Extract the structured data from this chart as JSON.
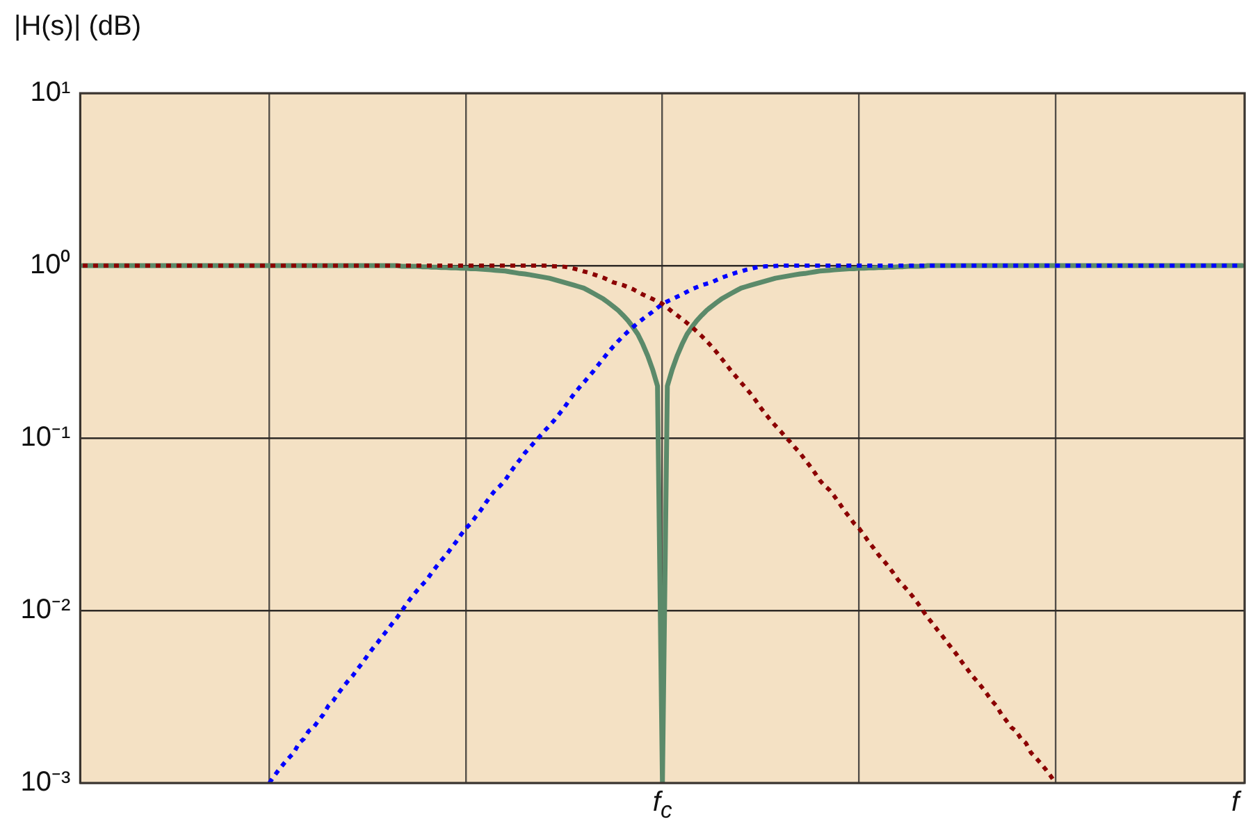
{
  "chart_data": {
    "type": "line",
    "ylabel": "|H(s)| (dB)",
    "xlabel": "f",
    "categories": [
      null,
      null,
      null,
      null,
      null,
      null,
      null,
      null,
      null,
      null,
      null,
      null,
      null,
      null,
      null,
      null,
      null,
      null,
      null,
      null,
      null,
      null,
      null,
      null,
      null,
      null,
      null,
      null,
      null,
      null,
      null,
      null,
      null,
      null,
      null,
      null,
      null,
      null,
      null,
      null,
      null,
      null,
      null,
      null,
      null,
      null,
      null,
      null,
      null,
      null,
      null,
      null,
      null,
      null,
      null,
      null,
      null,
      null,
      null,
      null,
      null,
      null,
      null,
      null,
      null,
      null,
      null,
      null,
      null,
      null,
      null,
      null,
      null,
      null,
      null,
      null,
      null,
      null,
      null,
      null,
      null,
      null,
      null,
      null,
      null,
      null,
      null,
      null,
      null,
      null,
      null,
      null,
      null,
      null,
      null,
      null,
      null,
      null,
      null,
      null,
      null,
      null,
      null,
      null,
      null,
      null,
      null,
      null,
      null,
      null,
      null,
      null,
      null,
      null,
      null,
      null,
      null,
      null,
      "f$_{c}$",
      null,
      null,
      null,
      null,
      null,
      null,
      null,
      null,
      null,
      null,
      null,
      null,
      null,
      null,
      null,
      null,
      null,
      null,
      null,
      null,
      null,
      null,
      null,
      null,
      null,
      null,
      null,
      null,
      null,
      null,
      null,
      null,
      null,
      null,
      null,
      null,
      null,
      null,
      null,
      null,
      null,
      null,
      null,
      null,
      null,
      null,
      null,
      null,
      null,
      null,
      null,
      null,
      null,
      null,
      null,
      null,
      null,
      null,
      null,
      null,
      null,
      null,
      null,
      null,
      null,
      null,
      null,
      null,
      null,
      null,
      null,
      null,
      null,
      null,
      null,
      null,
      null,
      null,
      null,
      null,
      null,
      null,
      null,
      null,
      null,
      null,
      null,
      null,
      null,
      null,
      null,
      null,
      null,
      null,
      null,
      null,
      null,
      null,
      null,
      null,
      null,
      null,
      null,
      null,
      null,
      null,
      null,
      null,
      null,
      null,
      null,
      null,
      null,
      null,
      null,
      null,
      null,
      null
    ],
    "ylim": [
      0.001,
      10
    ],
    "yticks": [
      {
        "value": 0.001,
        "label": "10⁻³"
      },
      {
        "value": 0.01,
        "label": "10⁻²"
      },
      {
        "value": 0.1,
        "label": "10⁻¹"
      },
      {
        "value": 1,
        "label": "10⁰"
      },
      {
        "value": 10,
        "label": "10¹"
      }
    ],
    "log": "y",
    "grid": true,
    "series": [
      {
        "color": "#8b0000",
        "line_style": "dotted",
        "values": [
          1,
          1,
          1,
          1,
          1,
          1,
          1,
          1,
          1,
          1,
          1,
          1,
          1,
          1,
          1,
          1,
          1,
          1,
          1,
          1,
          1,
          1,
          1,
          1,
          1,
          1,
          1,
          1,
          1,
          1,
          1,
          1,
          1,
          1,
          1,
          1,
          1,
          1,
          1,
          1,
          1,
          1,
          1,
          1,
          1,
          1,
          1,
          1,
          1,
          1,
          1,
          1,
          1,
          1,
          1,
          1,
          1,
          1,
          1,
          1,
          1,
          1,
          1,
          1,
          1,
          1,
          1,
          1,
          1,
          1,
          1,
          1,
          1,
          1,
          1,
          1,
          1,
          1,
          1,
          1,
          1,
          1,
          1,
          1,
          1,
          1,
          1,
          1,
          1,
          1,
          1,
          1,
          1,
          1,
          1,
          0.995,
          0.99,
          0.99,
          0.985,
          0.975,
          0.96,
          0.945,
          0.925,
          0.91,
          0.89,
          0.87,
          0.85,
          0.825,
          0.8,
          0.785,
          0.77,
          0.75,
          0.73,
          0.705,
          0.68,
          0.66,
          0.64,
          0.62,
          0.6,
          0.57,
          0.54,
          0.515,
          0.49,
          0.465,
          0.44,
          0.415,
          0.39,
          0.365,
          0.34,
          0.315,
          0.29,
          0.267,
          0.245,
          0.227,
          0.21,
          0.195,
          0.18,
          0.165,
          0.15,
          0.138,
          0.127,
          0.118,
          0.11,
          0.102,
          0.095,
          0.088,
          0.082,
          0.075,
          0.069,
          0.063,
          0.057,
          0.053,
          0.05,
          0.046,
          0.042,
          0.038,
          0.035,
          0.032,
          0.03,
          0.0275,
          0.025,
          0.023,
          0.021,
          0.0195,
          0.018,
          0.0165,
          0.015,
          0.014,
          0.013,
          0.012,
          0.011,
          0.01,
          0.0091,
          0.0084,
          0.0077,
          0.0071,
          0.0065,
          0.006,
          0.0055,
          0.005,
          0.0046,
          0.0042,
          0.0039,
          0.0036,
          0.0033,
          0.003,
          0.0028,
          0.0025,
          0.0023,
          0.0021,
          0.002,
          0.0018,
          0.0017,
          0.0015,
          0.0014,
          0.0013,
          0.0012,
          0.0011,
          0.001,
          null,
          null,
          null,
          null,
          null,
          null,
          null,
          null,
          null,
          null,
          null,
          null,
          null,
          null,
          null,
          null,
          null,
          null,
          null,
          null,
          null,
          null,
          null,
          null,
          null,
          null,
          null,
          null,
          null,
          null,
          null,
          null,
          null,
          null,
          null,
          null,
          null,
          null
        ]
      },
      {
        "color": "#0000ff",
        "line_style": "dotted",
        "values": [
          null,
          null,
          null,
          null,
          null,
          null,
          null,
          null,
          null,
          null,
          null,
          null,
          null,
          null,
          null,
          null,
          null,
          null,
          null,
          null,
          null,
          null,
          null,
          null,
          null,
          null,
          null,
          null,
          null,
          null,
          null,
          null,
          null,
          null,
          null,
          null,
          null,
          null,
          0.001,
          0.0011,
          0.0012,
          0.0013,
          0.0014,
          0.0015,
          0.0017,
          0.0018,
          0.002,
          0.0021,
          0.0023,
          0.0025,
          0.0028,
          0.003,
          0.0033,
          0.0036,
          0.0039,
          0.0042,
          0.0046,
          0.005,
          0.0055,
          0.006,
          0.0065,
          0.0071,
          0.0077,
          0.0084,
          0.0091,
          0.01,
          0.011,
          0.012,
          0.013,
          0.014,
          0.015,
          0.0165,
          0.018,
          0.0195,
          0.021,
          0.023,
          0.025,
          0.0275,
          0.03,
          0.032,
          0.035,
          0.038,
          0.042,
          0.046,
          0.05,
          0.053,
          0.057,
          0.063,
          0.069,
          0.075,
          0.082,
          0.088,
          0.095,
          0.102,
          0.11,
          0.118,
          0.127,
          0.138,
          0.15,
          0.165,
          0.18,
          0.195,
          0.21,
          0.227,
          0.245,
          0.267,
          0.29,
          0.315,
          0.34,
          0.365,
          0.39,
          0.415,
          0.44,
          0.465,
          0.49,
          0.515,
          0.54,
          0.57,
          0.6,
          0.62,
          0.64,
          0.66,
          0.68,
          0.705,
          0.73,
          0.75,
          0.77,
          0.785,
          0.8,
          0.825,
          0.85,
          0.87,
          0.89,
          0.91,
          0.925,
          0.945,
          0.96,
          0.975,
          0.985,
          0.99,
          0.99,
          0.995,
          1,
          1,
          1,
          1,
          1,
          1,
          1,
          1,
          1,
          1,
          1,
          1,
          1,
          1,
          1,
          1,
          1,
          1,
          1,
          1,
          1,
          1,
          1,
          1,
          1,
          1,
          1,
          1,
          1,
          1,
          1,
          1,
          1,
          1,
          1,
          1,
          1,
          1,
          1,
          1,
          1,
          1,
          1,
          1,
          1,
          1,
          1,
          1,
          1,
          1,
          1,
          1,
          1,
          1,
          1,
          1,
          1,
          1,
          1,
          1,
          1,
          1,
          1,
          1,
          1,
          1,
          1,
          1,
          1,
          1,
          1,
          1,
          1,
          1,
          1,
          1,
          1,
          1,
          1,
          1,
          1,
          1,
          1,
          1,
          1,
          1,
          1,
          1,
          1,
          1,
          1,
          1,
          1,
          1,
          1
        ]
      },
      {
        "color": "#5b8a6a",
        "line_style": "solid",
        "values": [
          1,
          1,
          1,
          1,
          1,
          1,
          1,
          1,
          1,
          1,
          1,
          1,
          1,
          1,
          1,
          1,
          1,
          1,
          1,
          1,
          1,
          1,
          1,
          1,
          1,
          1,
          1,
          1,
          1,
          1,
          1,
          1,
          1,
          1,
          1,
          1,
          1,
          1,
          1,
          1,
          1,
          1,
          1,
          1,
          1,
          1,
          1,
          1,
          1,
          1,
          1,
          1,
          1,
          1,
          1,
          1,
          1,
          1,
          1,
          1,
          1,
          1,
          1,
          1,
          1,
          0.99,
          0.99,
          0.99,
          0.99,
          0.985,
          0.985,
          0.98,
          0.98,
          0.975,
          0.975,
          0.97,
          0.97,
          0.965,
          0.965,
          0.96,
          0.96,
          0.955,
          0.95,
          0.945,
          0.94,
          0.935,
          0.93,
          0.92,
          0.91,
          0.9,
          0.895,
          0.885,
          0.875,
          0.865,
          0.855,
          0.845,
          0.83,
          0.815,
          0.8,
          0.785,
          0.77,
          0.755,
          0.74,
          0.715,
          0.69,
          0.665,
          0.64,
          0.61,
          0.58,
          0.55,
          0.515,
          0.48,
          0.44,
          0.4,
          0.35,
          0.3,
          0.25,
          0.2,
          0.001,
          0.2,
          0.25,
          0.3,
          0.35,
          0.4,
          0.44,
          0.48,
          0.515,
          0.55,
          0.58,
          0.61,
          0.64,
          0.665,
          0.69,
          0.715,
          0.74,
          0.755,
          0.77,
          0.785,
          0.8,
          0.815,
          0.83,
          0.845,
          0.855,
          0.865,
          0.875,
          0.885,
          0.895,
          0.9,
          0.91,
          0.92,
          0.93,
          0.935,
          0.94,
          0.945,
          0.95,
          0.955,
          0.96,
          0.96,
          0.965,
          0.965,
          0.97,
          0.97,
          0.975,
          0.975,
          0.98,
          0.98,
          0.985,
          0.985,
          0.99,
          0.99,
          0.99,
          0.99,
          1,
          1,
          1,
          1,
          1,
          1,
          1,
          1,
          1,
          1,
          1,
          1,
          1,
          1,
          1,
          1,
          1,
          1,
          1,
          1,
          1,
          1,
          1,
          1,
          1,
          1,
          1,
          1,
          1,
          1,
          1,
          1,
          1,
          1,
          1,
          1,
          1,
          1,
          1,
          1,
          1,
          1,
          1,
          1,
          1,
          1,
          1,
          1,
          1,
          1,
          1,
          1,
          1,
          1,
          1,
          1,
          1,
          1,
          1,
          1,
          1,
          1,
          1,
          1,
          1
        ]
      }
    ]
  }
}
